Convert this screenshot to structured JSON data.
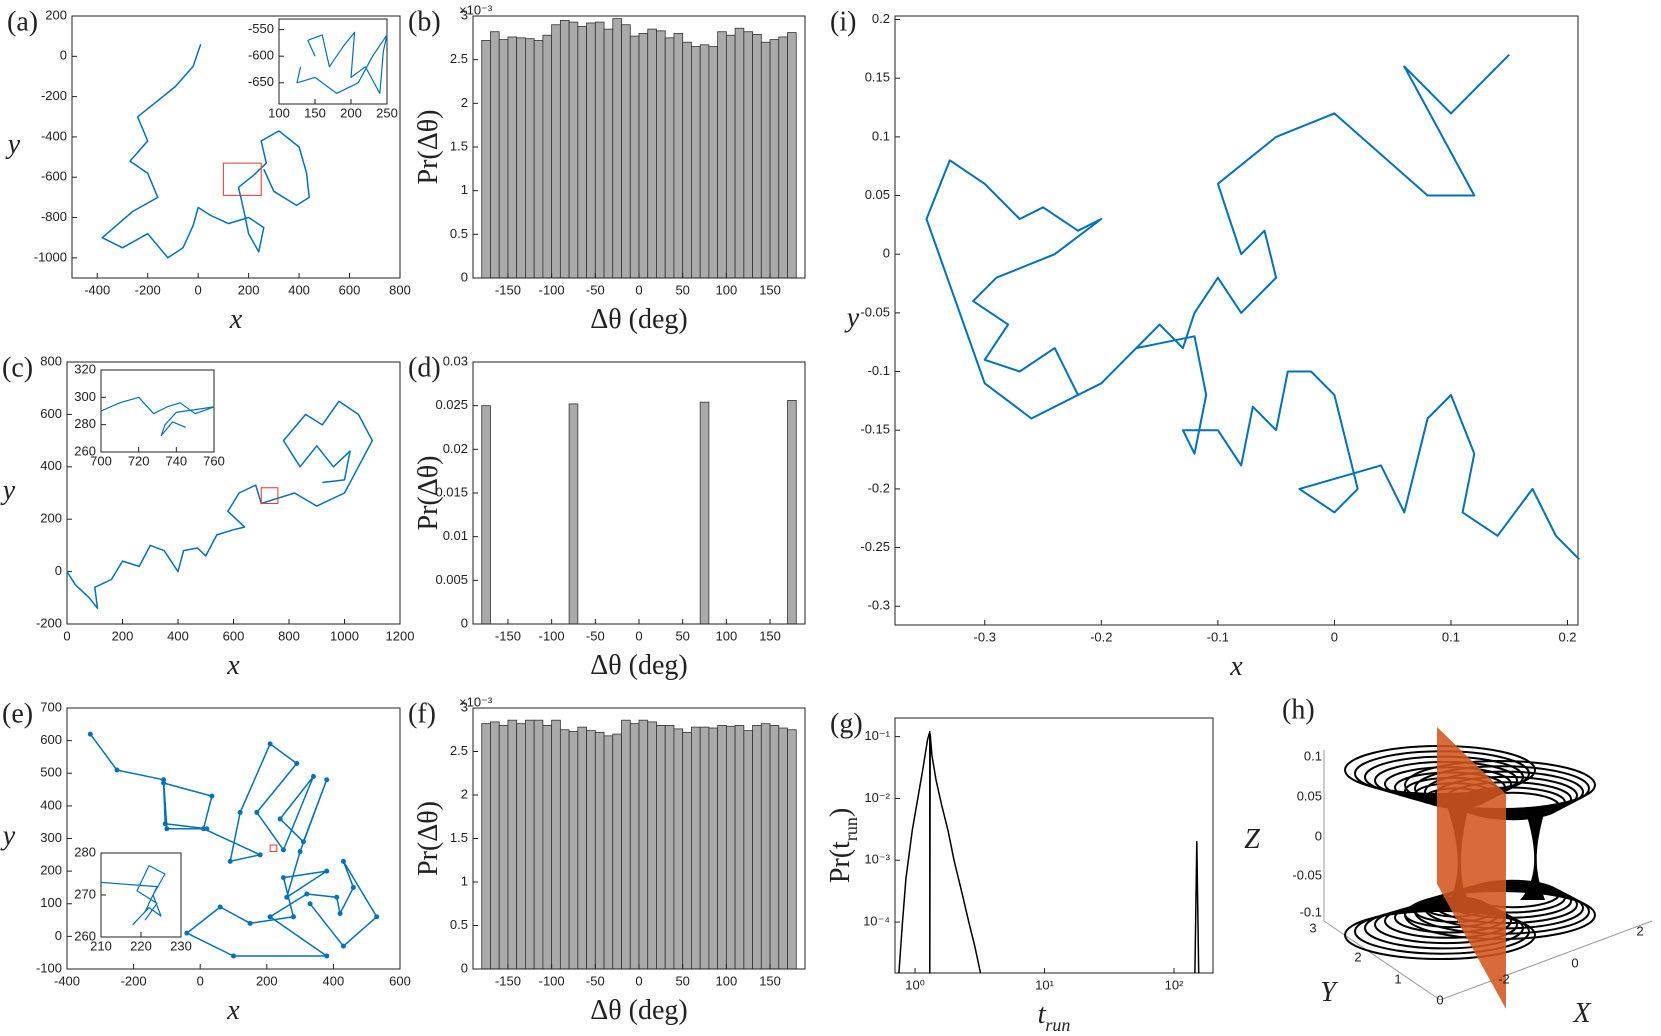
{
  "chart_data": [
    {
      "type": "line",
      "panel_label": "(a)",
      "xlabel": "x",
      "ylabel": "y",
      "color": "#0072bd",
      "xlim": [
        -500,
        800
      ],
      "xticks": [
        -400,
        -200,
        0,
        200,
        400,
        600,
        800
      ],
      "ylim": [
        -1100,
        200
      ],
      "yticks": [
        -1000,
        -800,
        -600,
        -400,
        -200,
        0,
        200
      ],
      "x": [
        10,
        -20,
        -90,
        -170,
        -240,
        -200,
        -270,
        -200,
        -160,
        -260,
        -380,
        -300,
        -200,
        -120,
        -60,
        -20,
        0,
        50,
        120,
        200,
        260,
        240,
        200,
        180,
        160,
        220,
        270,
        250,
        320,
        400,
        430,
        440,
        390,
        300,
        260
      ],
      "y": [
        60,
        -50,
        -150,
        -230,
        -300,
        -420,
        -520,
        -580,
        -700,
        -770,
        -900,
        -950,
        -880,
        -1000,
        -950,
        -840,
        -750,
        -790,
        -830,
        -800,
        -850,
        -970,
        -880,
        -760,
        -650,
        -590,
        -530,
        -420,
        -370,
        -450,
        -580,
        -700,
        -740,
        -670,
        -560
      ],
      "inset": {
        "color": "#0072bd",
        "xlim": [
          100,
          250
        ],
        "xticks": [
          100,
          150,
          200,
          250
        ],
        "ylim": [
          -690,
          -530
        ],
        "yticks": [
          -650,
          -600,
          -550
        ],
        "x": [
          150,
          140,
          160,
          170,
          190,
          205,
          200,
          220,
          240,
          245,
          250,
          230,
          210,
          180,
          150,
          125,
          130
        ],
        "y": [
          -600,
          -570,
          -560,
          -620,
          -580,
          -555,
          -640,
          -620,
          -670,
          -590,
          -560,
          -600,
          -650,
          -670,
          -640,
          -650,
          -620
        ]
      }
    },
    {
      "type": "histogram",
      "panel_label": "(b)",
      "xlabel": "Δθ (deg)",
      "ylabel": "Pr(Δθ)",
      "y_exponent": "×10⁻³",
      "color": "#aaaaaa",
      "xlim": [
        -190,
        190
      ],
      "xticks": [
        -150,
        -100,
        -50,
        0,
        50,
        100,
        150
      ],
      "ylim": [
        0,
        3
      ],
      "yticks": [
        0,
        0.5,
        1,
        1.5,
        2,
        2.5,
        3
      ],
      "bins": [
        -180,
        -170,
        -160,
        -150,
        -140,
        -130,
        -120,
        -110,
        -100,
        -90,
        -80,
        -70,
        -60,
        -50,
        -40,
        -30,
        -20,
        -10,
        0,
        10,
        20,
        30,
        40,
        50,
        60,
        70,
        80,
        90,
        100,
        110,
        120,
        130,
        140,
        150,
        160,
        170,
        180
      ],
      "values": [
        2.72,
        2.82,
        2.73,
        2.76,
        2.75,
        2.74,
        2.72,
        2.78,
        2.9,
        2.95,
        2.93,
        2.88,
        2.92,
        2.93,
        2.85,
        2.97,
        2.9,
        2.77,
        2.8,
        2.85,
        2.83,
        2.75,
        2.8,
        2.7,
        2.65,
        2.67,
        2.65,
        2.82,
        2.78,
        2.86,
        2.82,
        2.79,
        2.7,
        2.73,
        2.76,
        2.81
      ]
    },
    {
      "type": "line",
      "panel_label": "(c)",
      "xlabel": "x",
      "ylabel": "y",
      "color": "#0072bd",
      "xlim": [
        0,
        1200
      ],
      "xticks": [
        0,
        200,
        400,
        600,
        800,
        1000,
        1200
      ],
      "ylim": [
        -200,
        800
      ],
      "yticks": [
        -200,
        0,
        200,
        400,
        600,
        800
      ],
      "x": [
        0,
        30,
        80,
        110,
        100,
        160,
        200,
        260,
        300,
        350,
        400,
        420,
        470,
        500,
        540,
        600,
        640,
        580,
        620,
        680,
        700,
        760,
        820,
        900,
        1000,
        1050,
        1100,
        1050,
        980,
        920,
        860,
        780,
        840,
        900,
        960,
        1020,
        1000,
        920
      ],
      "y": [
        0,
        -50,
        -100,
        -140,
        -60,
        -30,
        40,
        20,
        100,
        80,
        0,
        80,
        90,
        60,
        140,
        160,
        170,
        230,
        300,
        330,
        260,
        280,
        300,
        250,
        300,
        400,
        500,
        600,
        650,
        560,
        600,
        500,
        400,
        480,
        400,
        460,
        350,
        340
      ],
      "inset": {
        "color": "#0072bd",
        "xlim": [
          700,
          760
        ],
        "xticks": [
          700,
          720,
          740,
          760
        ],
        "ylim": [
          260,
          320
        ],
        "yticks": [
          260,
          280,
          300,
          320
        ],
        "x": [
          700,
          710,
          720,
          728,
          735,
          742,
          750,
          760,
          740,
          734,
          732,
          738,
          745
        ],
        "y": [
          290,
          296,
          300,
          288,
          293,
          296,
          288,
          293,
          289,
          280,
          272,
          282,
          278
        ]
      }
    },
    {
      "type": "histogram",
      "panel_label": "(d)",
      "xlabel": "Δθ (deg)",
      "ylabel": "Pr(Δθ)",
      "color": "#aaaaaa",
      "xlim": [
        -190,
        190
      ],
      "xticks": [
        -150,
        -100,
        -50,
        0,
        50,
        100,
        150
      ],
      "ylim": [
        0,
        0.03
      ],
      "yticks": [
        0,
        0.005,
        0.01,
        0.015,
        0.02,
        0.025,
        0.03
      ],
      "bins": [
        -180,
        -170,
        -160,
        -150,
        -140,
        -130,
        -120,
        -110,
        -100,
        -90,
        -80,
        -70,
        -60,
        -50,
        -40,
        -30,
        -20,
        -10,
        0,
        10,
        20,
        30,
        40,
        50,
        60,
        70,
        80,
        90,
        100,
        110,
        120,
        130,
        140,
        150,
        160,
        170,
        180
      ],
      "values": [
        0.025,
        0,
        0,
        0,
        0,
        0,
        0,
        0,
        0,
        0,
        0.0252,
        0,
        0,
        0,
        0,
        0,
        0,
        0,
        0,
        0,
        0,
        0,
        0,
        0,
        0,
        0.0254,
        0,
        0,
        0,
        0,
        0,
        0,
        0,
        0,
        0,
        0.0256
      ]
    },
    {
      "type": "line",
      "panel_label": "(e)",
      "xlabel": "x",
      "ylabel": "y",
      "color": "#0072bd",
      "markers": true,
      "xlim": [
        -400,
        600
      ],
      "xticks": [
        -400,
        -200,
        0,
        200,
        400,
        600
      ],
      "ylim": [
        -100,
        700
      ],
      "yticks": [
        -100,
        0,
        100,
        200,
        300,
        400,
        500,
        600,
        700
      ],
      "x": [
        -330,
        -250,
        -110,
        -100,
        20,
        -105,
        -110,
        35,
        10,
        180,
        90,
        120,
        210,
        290,
        170,
        250,
        340,
        240,
        310,
        380,
        300,
        260,
        380,
        250,
        280,
        150,
        60,
        -40,
        100,
        380,
        210,
        320,
        410,
        420,
        460,
        430,
        530,
        430,
        330
      ],
      "y": [
        620,
        510,
        480,
        330,
        330,
        345,
        470,
        430,
        330,
        250,
        230,
        380,
        590,
        530,
        380,
        265,
        490,
        360,
        290,
        480,
        260,
        120,
        200,
        180,
        60,
        40,
        90,
        10,
        -60,
        -60,
        60,
        130,
        120,
        70,
        150,
        230,
        60,
        -30,
        100
      ],
      "inset": {
        "color": "#0072bd",
        "xlim": [
          210,
          230
        ],
        "xticks": [
          210,
          220,
          230
        ],
        "ylim": [
          260,
          280
        ],
        "yticks": [
          260,
          270,
          280
        ],
        "x": [
          210,
          224,
          221,
          218,
          222,
          225,
          223,
          226,
          222,
          219,
          224,
          221
        ],
        "y": [
          273,
          272,
          266,
          263,
          267,
          265,
          270,
          275,
          277,
          271,
          268,
          264
        ]
      }
    },
    {
      "type": "histogram",
      "panel_label": "(f)",
      "xlabel": "Δθ (deg)",
      "ylabel": "Pr(Δθ)",
      "y_exponent": "×10⁻³",
      "color": "#aaaaaa",
      "xlim": [
        -190,
        190
      ],
      "xticks": [
        -150,
        -100,
        -50,
        0,
        50,
        100,
        150
      ],
      "ylim": [
        0,
        3
      ],
      "yticks": [
        0,
        0.5,
        1,
        1.5,
        2,
        2.5,
        3
      ],
      "bins": [
        -180,
        -170,
        -160,
        -150,
        -140,
        -130,
        -120,
        -110,
        -100,
        -90,
        -80,
        -70,
        -60,
        -50,
        -40,
        -30,
        -20,
        -10,
        0,
        10,
        20,
        30,
        40,
        50,
        60,
        70,
        80,
        90,
        100,
        110,
        120,
        130,
        140,
        150,
        160,
        170,
        180
      ],
      "values": [
        2.82,
        2.84,
        2.8,
        2.86,
        2.82,
        2.86,
        2.86,
        2.8,
        2.86,
        2.75,
        2.73,
        2.78,
        2.74,
        2.72,
        2.68,
        2.7,
        2.86,
        2.82,
        2.86,
        2.84,
        2.8,
        2.8,
        2.76,
        2.72,
        2.78,
        2.78,
        2.77,
        2.8,
        2.79,
        2.8,
        2.74,
        2.8,
        2.82,
        2.8,
        2.77,
        2.75
      ]
    },
    {
      "type": "line",
      "panel_label": "(g)",
      "xlabel": "t",
      "xlabel_sub": "run",
      "ylabel": "Pr(t",
      "ylabel_sub": "run",
      "ylabel_end": ")",
      "color": "#000000",
      "log_x": true,
      "log_y": true,
      "xlim": [
        0.7,
        200
      ],
      "xticks": [
        {
          "value": 1,
          "label": "10⁰"
        },
        {
          "value": 10,
          "label": "10¹"
        },
        {
          "value": 100,
          "label": "10²"
        }
      ],
      "ylim": [
        1.5e-05,
        0.2
      ],
      "yticks": [
        {
          "value": 0.0001,
          "label": "10⁻⁴"
        },
        {
          "value": 0.001,
          "label": "10⁻³"
        },
        {
          "value": 0.01,
          "label": "10⁻²"
        },
        {
          "value": 0.1,
          "label": "10⁻¹"
        }
      ],
      "x": [
        0.75,
        0.8,
        0.85,
        0.95,
        1.05,
        1.15,
        1.25,
        1.3,
        1.3,
        1.31,
        1.35,
        1.45,
        1.6,
        1.8,
        2.0,
        2.3,
        2.6,
        2.9,
        3.2,
        null,
        145,
        150,
        155
      ],
      "y": [
        1.5e-05,
        0.0001,
        0.0005,
        0.003,
        0.01,
        0.03,
        0.09,
        0.12,
        1.5e-05,
        0.11,
        0.05,
        0.02,
        0.008,
        0.003,
        0.001,
        0.0003,
        0.0001,
        4e-05,
        1.5e-05,
        null,
        1.5e-05,
        0.002,
        1.5e-05
      ]
    },
    {
      "type": "3d",
      "panel_label": "(h)",
      "xlabel": "X",
      "ylabel": "Y",
      "zlabel": "Z",
      "xticks": [
        -2,
        0,
        2
      ],
      "yticks": [
        0,
        1,
        2,
        3
      ],
      "zticks": [
        0.1,
        0.05,
        0,
        -0.05,
        -0.1
      ]
    },
    {
      "type": "line",
      "panel_label": "(i)",
      "xlabel": "x",
      "ylabel": "y",
      "color": "#0072bd",
      "xlim": [
        -0.377,
        0.209
      ],
      "xticks": [
        -0.3,
        -0.2,
        -0.1,
        0,
        0.1,
        0.2
      ],
      "ylim": [
        -0.316,
        0.203
      ],
      "yticks": [
        -0.3,
        -0.25,
        -0.2,
        -0.15,
        -0.1,
        -0.05,
        0,
        0.05,
        0.1,
        0.15,
        0.2
      ],
      "x": [
        0.15,
        0.1,
        0.06,
        0.12,
        0.08,
        0.0,
        -0.05,
        -0.1,
        -0.09,
        -0.08,
        -0.06,
        -0.05,
        -0.08,
        -0.1,
        -0.12,
        -0.13,
        -0.15,
        -0.17,
        -0.2,
        -0.22,
        -0.24,
        -0.27,
        -0.3,
        -0.28,
        -0.31,
        -0.29,
        -0.24,
        -0.2,
        -0.22,
        -0.25,
        -0.27,
        -0.3,
        -0.33,
        -0.35,
        -0.3,
        -0.26,
        -0.22,
        -0.2,
        -0.17,
        -0.12,
        -0.11,
        -0.12,
        -0.13,
        -0.1,
        -0.08,
        -0.07,
        -0.05,
        -0.04,
        -0.02,
        0.0,
        0.02,
        0.0,
        -0.03,
        0.04,
        0.06,
        0.08,
        0.1,
        0.12,
        0.11,
        0.14,
        0.17,
        0.19,
        0.21
      ],
      "y": [
        0.17,
        0.12,
        0.16,
        0.05,
        0.05,
        0.12,
        0.1,
        0.06,
        0.03,
        0.0,
        0.02,
        -0.02,
        -0.05,
        -0.02,
        -0.05,
        -0.08,
        -0.06,
        -0.08,
        -0.11,
        -0.12,
        -0.08,
        -0.1,
        -0.09,
        -0.06,
        -0.04,
        -0.02,
        0.0,
        0.03,
        0.02,
        0.04,
        0.03,
        0.06,
        0.08,
        0.03,
        -0.11,
        -0.14,
        -0.12,
        -0.11,
        -0.08,
        -0.07,
        -0.12,
        -0.17,
        -0.15,
        -0.15,
        -0.18,
        -0.13,
        -0.15,
        -0.1,
        -0.1,
        -0.12,
        -0.2,
        -0.22,
        -0.2,
        -0.18,
        -0.22,
        -0.14,
        -0.12,
        -0.17,
        -0.22,
        -0.24,
        -0.2,
        -0.24,
        -0.26
      ]
    }
  ]
}
